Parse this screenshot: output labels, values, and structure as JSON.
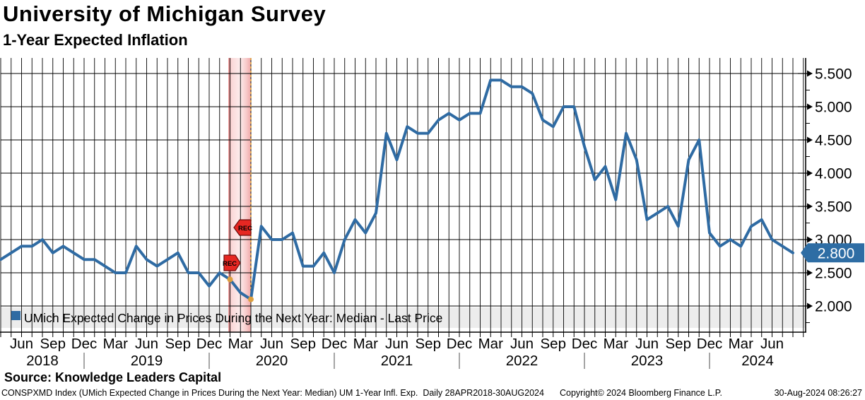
{
  "title": "University of Michigan Survey",
  "subtitle": "1-Year Expected Inflation",
  "legend": {
    "label": "UMich Expected Change in Prices During the Next Year: Median - Last Price",
    "marker_color": "#2f6ba3"
  },
  "last_price": {
    "label": "2.800",
    "value": 2.8,
    "box_color": "#2e6da4",
    "text_color": "#ffffff"
  },
  "recession": {
    "label": "REC",
    "badge_color": "#e62722",
    "marker_color": "#dd9f3d"
  },
  "footer": {
    "source": "Source: Knowledge Leaders Capital",
    "description": "CONSPXMD Index (UMich Expected Change in Prices During the Next Year: Median) UM 1-Year Infl. Exp.  Daily 28APR2018-30AUG2024",
    "copyright": "Copyright© 2024 Bloomberg Finance L.P.",
    "timestamp": "30-Aug-2024 08:26:27"
  },
  "chart_data": {
    "type": "line",
    "title": "University of Michigan Survey — 1-Year Expected Inflation",
    "frequency": "monthly",
    "x_start": "2018-04",
    "x_end": "2024-08",
    "series": [
      {
        "name": "UMich Expected Change in Prices During the Next Year: Median",
        "color": "#2f6ba3",
        "values": [
          2.7,
          2.8,
          2.9,
          2.9,
          3.0,
          2.8,
          2.9,
          2.8,
          2.7,
          2.7,
          2.6,
          2.5,
          2.5,
          2.9,
          2.7,
          2.6,
          2.7,
          2.8,
          2.5,
          2.5,
          2.3,
          2.5,
          2.4,
          2.2,
          2.1,
          3.2,
          3.0,
          3.0,
          3.1,
          2.6,
          2.6,
          2.8,
          2.5,
          3.0,
          3.3,
          3.1,
          3.4,
          4.6,
          4.2,
          4.7,
          4.6,
          4.6,
          4.8,
          4.9,
          4.8,
          4.9,
          4.9,
          5.4,
          5.4,
          5.3,
          5.3,
          5.2,
          4.8,
          4.7,
          5.0,
          5.0,
          4.4,
          3.9,
          4.1,
          3.6,
          4.6,
          4.2,
          3.3,
          3.4,
          3.5,
          3.2,
          4.2,
          4.5,
          3.1,
          2.9,
          3.0,
          2.9,
          3.2,
          3.3,
          3.0,
          2.9,
          2.8
        ]
      }
    ],
    "last_value": 2.8,
    "ylim": [
      1.6,
      5.77
    ],
    "yticks": [
      5.5,
      5.0,
      4.5,
      4.0,
      3.5,
      3.0,
      2.5,
      2.0
    ],
    "ytick_labels": [
      "5.500",
      "5.000",
      "4.500",
      "4.000",
      "3.500",
      "3.000",
      "2.500",
      "2.000"
    ],
    "xtick_month_labels": [
      "Jun",
      "Sep",
      "Dec",
      "Mar",
      "Jun",
      "Sep",
      "Dec",
      "Mar",
      "Jun",
      "Sep",
      "Dec",
      "Mar",
      "Jun",
      "Sep",
      "Dec",
      "Mar",
      "Jun",
      "Sep",
      "Dec",
      "Mar",
      "Jun",
      "Sep",
      "Dec",
      "Mar",
      "Jun"
    ],
    "year_labels": [
      "2018",
      "2019",
      "2020",
      "2021",
      "2022",
      "2023",
      "2024"
    ],
    "grid": {
      "vertical": "monthly",
      "horizontal_step": 0.5
    },
    "legend_position": "bottom-inside",
    "recession_band": {
      "start": "2020-02",
      "end": "2020-04",
      "label": "REC"
    }
  }
}
